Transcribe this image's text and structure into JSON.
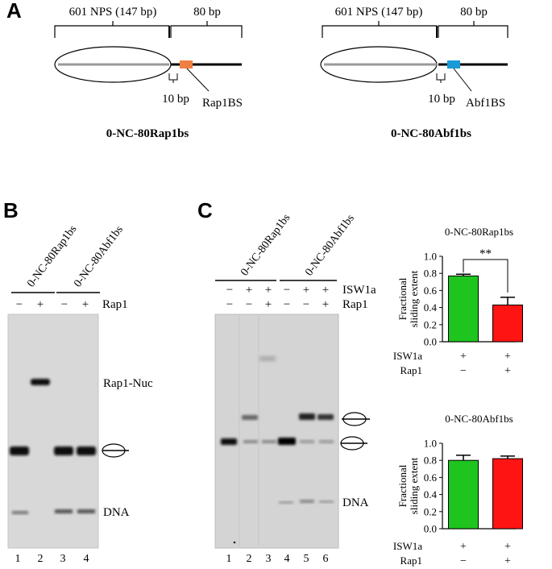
{
  "panel_a": {
    "label": "A",
    "left": {
      "nps": "601 NPS (147 bp)",
      "bp80": "80 bp",
      "bp10": "10 bp",
      "site": "Rap1BS",
      "site_color": "#f08040",
      "name": "0-NC-80Rap1bs"
    },
    "right": {
      "nps": "601 NPS (147 bp)",
      "bp80": "80 bp",
      "bp10": "10 bp",
      "site": "Abf1BS",
      "site_color": "#1a9ad6",
      "name": "0-NC-80Abf1bs"
    }
  },
  "panel_b": {
    "label": "B",
    "construct1": "0-NC-80Rap1bs",
    "construct2": "0-NC-80Abf1bs",
    "rap1_row": [
      "−",
      "+",
      "−",
      "+"
    ],
    "rap1_label": "Rap1",
    "band_rap1nuc": "Rap1-Nuc",
    "band_dna": "DNA",
    "lanes": [
      "1",
      "2",
      "3",
      "4"
    ]
  },
  "panel_c": {
    "label": "C",
    "construct1": "0-NC-80Rap1bs",
    "construct2": "0-NC-80Abf1bs",
    "isw1a_row": [
      "−",
      "+",
      "+",
      "−",
      "+",
      "+"
    ],
    "rap1_row": [
      "−",
      "−",
      "+",
      "−",
      "−",
      "+"
    ],
    "isw1a_label": "ISW1a",
    "rap1_label": "Rap1",
    "band_dna": "DNA",
    "lanes": [
      "1",
      "2",
      "3",
      "4",
      "5",
      "6"
    ]
  },
  "chart_data": [
    {
      "type": "bar",
      "title": "0-NC-80Rap1bs",
      "ylabel": "Fractional sliding extent",
      "ylim": [
        0,
        1.0
      ],
      "yticks": [
        "0.0",
        "0.2",
        "0.4",
        "0.6",
        "0.8",
        "1.0"
      ],
      "values": [
        0.77,
        0.43
      ],
      "errors": [
        0.02,
        0.09
      ],
      "colors": [
        "#1ec51e",
        "#ff1414"
      ],
      "significance": "**",
      "isw1a_label": "ISW1a",
      "rap1_label": "Rap1",
      "isw1a_row": [
        "+",
        "+"
      ],
      "rap1_row": [
        "−",
        "+"
      ]
    },
    {
      "type": "bar",
      "title": "0-NC-80Abf1bs",
      "ylabel": "Fractional sliding extent",
      "ylim": [
        0,
        1.0
      ],
      "yticks": [
        "0.0",
        "0.2",
        "0.4",
        "0.6",
        "0.8",
        "1.0"
      ],
      "values": [
        0.8,
        0.82
      ],
      "errors": [
        0.06,
        0.03
      ],
      "colors": [
        "#1ec51e",
        "#ff1414"
      ],
      "significance": "",
      "isw1a_label": "ISW1a",
      "rap1_label": "Rap1",
      "isw1a_row": [
        "+",
        "+"
      ],
      "rap1_row": [
        "−",
        "+"
      ]
    }
  ]
}
